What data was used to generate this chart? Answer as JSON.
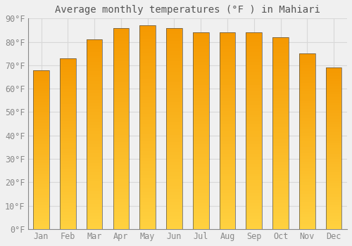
{
  "title": "Average monthly temperatures (°F ) in Mahiari",
  "months": [
    "Jan",
    "Feb",
    "Mar",
    "Apr",
    "May",
    "Jun",
    "Jul",
    "Aug",
    "Sep",
    "Oct",
    "Nov",
    "Dec"
  ],
  "values": [
    68,
    73,
    81,
    86,
    87,
    86,
    84,
    84,
    84,
    82,
    75,
    69
  ],
  "ylim": [
    0,
    90
  ],
  "yticks": [
    0,
    10,
    20,
    30,
    40,
    50,
    60,
    70,
    80,
    90
  ],
  "ytick_labels": [
    "0°F",
    "10°F",
    "20°F",
    "30°F",
    "40°F",
    "50°F",
    "60°F",
    "70°F",
    "80°F",
    "90°F"
  ],
  "background_color": "#f0f0f0",
  "plot_bg_color": "#f0f0f0",
  "grid_color": "#d8d8d8",
  "bar_color_bottom": "#FFD040",
  "bar_color_top": "#F59A00",
  "bar_edge_color": "#555555",
  "font_family": "monospace",
  "title_fontsize": 10,
  "tick_fontsize": 8.5,
  "bar_width": 0.6,
  "n_grad": 60
}
